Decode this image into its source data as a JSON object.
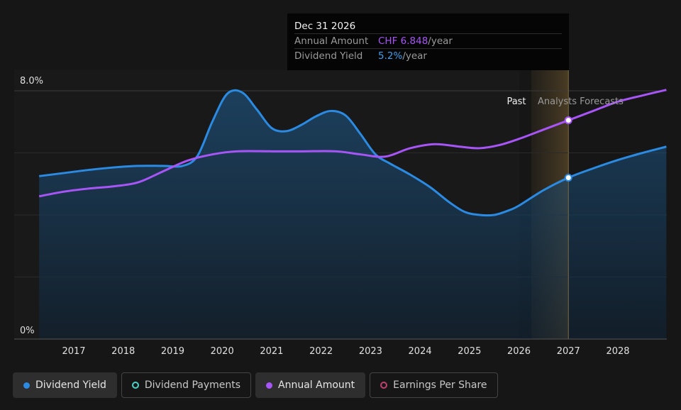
{
  "tooltip": {
    "date": "Dec 31 2026",
    "rows": [
      {
        "label": "Annual Amount",
        "value": "CHF 6.848",
        "unit": "/year"
      },
      {
        "label": "Dividend Yield",
        "value": "5.2%",
        "unit": "/year"
      }
    ]
  },
  "annotations": {
    "past": "Past",
    "forecast": "Analysts Forecasts"
  },
  "legend": [
    {
      "label": "Dividend Yield",
      "color": "#2b8ae2",
      "style": "filled",
      "active": true
    },
    {
      "label": "Dividend Payments",
      "color": "#4fd1c5",
      "style": "hollow",
      "active": false
    },
    {
      "label": "Annual Amount",
      "color": "#a855f7",
      "style": "filled",
      "active": true
    },
    {
      "label": "Earnings Per Share",
      "color": "#c0406e",
      "style": "hollow",
      "active": false
    }
  ],
  "chart_data": {
    "type": "line",
    "xlim": [
      2016.3,
      2028.98
    ],
    "ylim": [
      0,
      8.0
    ],
    "y_tick_labels": [
      "0%",
      "8.0%"
    ],
    "x_ticks": [
      2017,
      2018,
      2019,
      2020,
      2021,
      2022,
      2023,
      2024,
      2025,
      2026,
      2027,
      2028
    ],
    "grid": true,
    "past_end": 2026.0,
    "forecast_band": [
      2026.25,
      2027.0
    ],
    "highlight_x": 2027.0,
    "series": [
      {
        "name": "Dividend Yield",
        "color": "#2b8ae2",
        "fill": true,
        "points": [
          [
            2016.3,
            5.25
          ],
          [
            2016.8,
            5.35
          ],
          [
            2017.3,
            5.45
          ],
          [
            2017.8,
            5.53
          ],
          [
            2018.3,
            5.58
          ],
          [
            2018.8,
            5.58
          ],
          [
            2019.2,
            5.58
          ],
          [
            2019.5,
            5.9
          ],
          [
            2019.8,
            7.0
          ],
          [
            2020.1,
            7.9
          ],
          [
            2020.4,
            7.95
          ],
          [
            2020.7,
            7.4
          ],
          [
            2021.0,
            6.8
          ],
          [
            2021.3,
            6.7
          ],
          [
            2021.6,
            6.9
          ],
          [
            2021.9,
            7.18
          ],
          [
            2022.2,
            7.35
          ],
          [
            2022.5,
            7.2
          ],
          [
            2022.8,
            6.6
          ],
          [
            2023.1,
            5.95
          ],
          [
            2023.4,
            5.65
          ],
          [
            2023.8,
            5.3
          ],
          [
            2024.2,
            4.9
          ],
          [
            2024.6,
            4.4
          ],
          [
            2024.9,
            4.1
          ],
          [
            2025.2,
            4.0
          ],
          [
            2025.5,
            4.0
          ],
          [
            2025.8,
            4.15
          ],
          [
            2026.0,
            4.3
          ],
          [
            2026.5,
            4.8
          ],
          [
            2027.0,
            5.2
          ],
          [
            2027.5,
            5.5
          ],
          [
            2028.0,
            5.77
          ],
          [
            2028.5,
            6.0
          ],
          [
            2028.98,
            6.2
          ]
        ]
      },
      {
        "name": "Annual Amount",
        "color": "#a855f7",
        "fill": false,
        "points": [
          [
            2016.3,
            4.6
          ],
          [
            2016.8,
            4.75
          ],
          [
            2017.3,
            4.85
          ],
          [
            2017.8,
            4.92
          ],
          [
            2018.3,
            5.05
          ],
          [
            2018.8,
            5.4
          ],
          [
            2019.3,
            5.75
          ],
          [
            2019.8,
            5.95
          ],
          [
            2020.3,
            6.05
          ],
          [
            2021.0,
            6.05
          ],
          [
            2021.6,
            6.05
          ],
          [
            2022.3,
            6.05
          ],
          [
            2022.8,
            5.95
          ],
          [
            2023.3,
            5.88
          ],
          [
            2023.8,
            6.15
          ],
          [
            2024.3,
            6.28
          ],
          [
            2024.8,
            6.2
          ],
          [
            2025.2,
            6.15
          ],
          [
            2025.6,
            6.25
          ],
          [
            2026.0,
            6.45
          ],
          [
            2026.5,
            6.75
          ],
          [
            2027.0,
            7.05
          ],
          [
            2027.5,
            7.35
          ],
          [
            2028.0,
            7.65
          ],
          [
            2028.5,
            7.85
          ],
          [
            2028.98,
            8.03
          ]
        ]
      }
    ]
  }
}
